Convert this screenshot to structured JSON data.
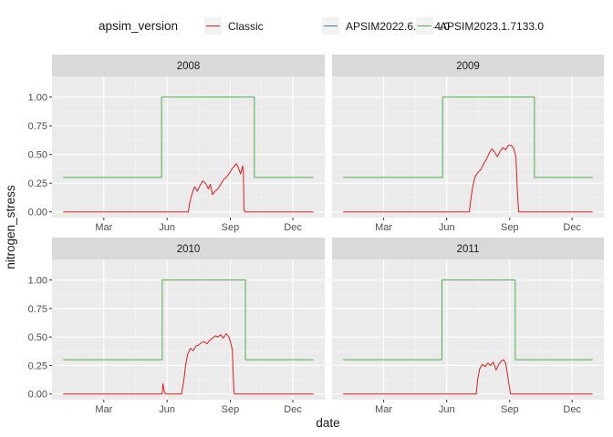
{
  "chart_data": {
    "type": "line",
    "xlabel": "date",
    "ylabel": "nitrogen_stress",
    "ylim": [
      -0.05,
      1.18
    ],
    "y_ticks": [
      0,
      0.25,
      0.5,
      0.75,
      1.0
    ],
    "y_tick_labels": [
      "0.00",
      "0.25",
      "0.50",
      "0.75",
      "1.00"
    ],
    "x_domain_day_of_year": [
      1,
      365
    ],
    "x_ticks_day_of_year": [
      60,
      152,
      244,
      335
    ],
    "x_tick_labels": [
      "Mar",
      "Jun",
      "Sep",
      "Dec"
    ],
    "grid": true,
    "legend": {
      "title": "apsim_version",
      "position": "top",
      "entries": [
        {
          "name": "Classic",
          "color": "#e41a1c"
        },
        {
          "name": "APSIM2022.6.7044.0",
          "color": "#377eb8"
        },
        {
          "name": "APSIM2023.1.7133.0",
          "color": "#4daf4a"
        }
      ]
    },
    "panels": [
      {
        "title": "2008",
        "series": [
          {
            "name": "APSIM2023.1.7133.0",
            "color": "#4daf4a",
            "points": [
              [
                1,
                0.3
              ],
              [
                144,
                0.3
              ],
              [
                144,
                1.0
              ],
              [
                279,
                1.0
              ],
              [
                279,
                0.3
              ],
              [
                365,
                0.3
              ]
            ]
          },
          {
            "name": "Classic",
            "color": "#e41a1c",
            "points": [
              [
                1,
                0
              ],
              [
                183,
                0
              ],
              [
                185,
                0.08
              ],
              [
                188,
                0.15
              ],
              [
                192,
                0.22
              ],
              [
                196,
                0.18
              ],
              [
                200,
                0.23
              ],
              [
                204,
                0.27
              ],
              [
                208,
                0.25
              ],
              [
                212,
                0.2
              ],
              [
                215,
                0.24
              ],
              [
                218,
                0.15
              ],
              [
                222,
                0.18
              ],
              [
                226,
                0.2
              ],
              [
                230,
                0.24
              ],
              [
                234,
                0.28
              ],
              [
                238,
                0.3
              ],
              [
                242,
                0.33
              ],
              [
                246,
                0.37
              ],
              [
                250,
                0.4
              ],
              [
                253,
                0.42
              ],
              [
                256,
                0.38
              ],
              [
                259,
                0.33
              ],
              [
                262,
                0.4
              ],
              [
                263,
                0.35
              ],
              [
                264,
                0.02
              ],
              [
                265,
                0
              ],
              [
                365,
                0
              ]
            ]
          }
        ]
      },
      {
        "title": "2009",
        "series": [
          {
            "name": "APSIM2023.1.7133.0",
            "color": "#4daf4a",
            "points": [
              [
                1,
                0.3
              ],
              [
                146,
                0.3
              ],
              [
                146,
                1.0
              ],
              [
                280,
                1.0
              ],
              [
                280,
                0.3
              ],
              [
                365,
                0.3
              ]
            ]
          },
          {
            "name": "Classic",
            "color": "#e41a1c",
            "points": [
              [
                1,
                0
              ],
              [
                185,
                0
              ],
              [
                187,
                0.1
              ],
              [
                190,
                0.22
              ],
              [
                193,
                0.3
              ],
              [
                197,
                0.34
              ],
              [
                202,
                0.37
              ],
              [
                206,
                0.42
              ],
              [
                210,
                0.46
              ],
              [
                214,
                0.51
              ],
              [
                218,
                0.55
              ],
              [
                222,
                0.52
              ],
              [
                226,
                0.48
              ],
              [
                230,
                0.53
              ],
              [
                234,
                0.56
              ],
              [
                238,
                0.54
              ],
              [
                242,
                0.58
              ],
              [
                246,
                0.58
              ],
              [
                250,
                0.55
              ],
              [
                253,
                0.48
              ],
              [
                255,
                0.2
              ],
              [
                257,
                0
              ],
              [
                365,
                0
              ]
            ]
          }
        ]
      },
      {
        "title": "2010",
        "series": [
          {
            "name": "APSIM2023.1.7133.0",
            "color": "#4daf4a",
            "points": [
              [
                1,
                0.3
              ],
              [
                145,
                0.3
              ],
              [
                145,
                1.0
              ],
              [
                266,
                1.0
              ],
              [
                266,
                0.3
              ],
              [
                365,
                0.3
              ]
            ]
          },
          {
            "name": "Classic",
            "color": "#e41a1c",
            "points": [
              [
                1,
                0
              ],
              [
                145,
                0
              ],
              [
                146,
                0.09
              ],
              [
                148,
                0.02
              ],
              [
                150,
                0
              ],
              [
                173,
                0
              ],
              [
                176,
                0.1
              ],
              [
                179,
                0.25
              ],
              [
                182,
                0.35
              ],
              [
                186,
                0.4
              ],
              [
                190,
                0.38
              ],
              [
                194,
                0.42
              ],
              [
                198,
                0.43
              ],
              [
                202,
                0.45
              ],
              [
                206,
                0.46
              ],
              [
                210,
                0.44
              ],
              [
                214,
                0.47
              ],
              [
                218,
                0.49
              ],
              [
                222,
                0.51
              ],
              [
                226,
                0.5
              ],
              [
                230,
                0.52
              ],
              [
                234,
                0.49
              ],
              [
                238,
                0.53
              ],
              [
                242,
                0.5
              ],
              [
                245,
                0.44
              ],
              [
                247,
                0.38
              ],
              [
                249,
                0.05
              ],
              [
                250,
                0
              ],
              [
                365,
                0
              ]
            ]
          }
        ]
      },
      {
        "title": "2011",
        "series": [
          {
            "name": "APSIM2023.1.7133.0",
            "color": "#4daf4a",
            "points": [
              [
                1,
                0.3
              ],
              [
                145,
                0.3
              ],
              [
                145,
                1.0
              ],
              [
                252,
                1.0
              ],
              [
                252,
                0.3
              ],
              [
                365,
                0.3
              ]
            ]
          },
          {
            "name": "Classic",
            "color": "#e41a1c",
            "points": [
              [
                1,
                0
              ],
              [
                195,
                0
              ],
              [
                197,
                0.12
              ],
              [
                200,
                0.22
              ],
              [
                204,
                0.26
              ],
              [
                208,
                0.24
              ],
              [
                212,
                0.27
              ],
              [
                216,
                0.25
              ],
              [
                220,
                0.28
              ],
              [
                224,
                0.21
              ],
              [
                228,
                0.26
              ],
              [
                232,
                0.29
              ],
              [
                235,
                0.3
              ],
              [
                238,
                0.27
              ],
              [
                240,
                0.2
              ],
              [
                242,
                0.12
              ],
              [
                244,
                0.04
              ],
              [
                245,
                0
              ],
              [
                365,
                0
              ]
            ]
          }
        ]
      }
    ]
  }
}
